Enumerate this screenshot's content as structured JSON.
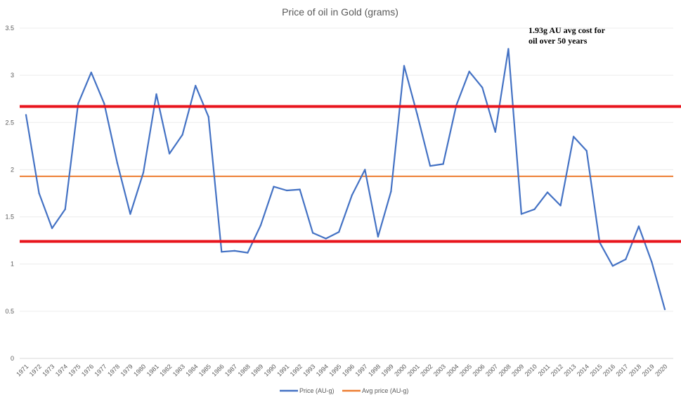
{
  "chart_data": {
    "type": "line",
    "title": "Price of oil in Gold (grams)",
    "xlabel": "",
    "ylabel": "",
    "ylim": [
      0,
      3.5
    ],
    "yticks": [
      "0",
      "0.5",
      "1",
      "1.5",
      "2",
      "2.5",
      "3",
      "3.5"
    ],
    "grid": true,
    "legend": "bottom",
    "annotation": [
      "1.93g AU avg cost for",
      "oil over 50 years"
    ],
    "categories": [
      "1971",
      "1972",
      "1973",
      "1974",
      "1975",
      "1976",
      "1977",
      "1978",
      "1979",
      "1980",
      "1981",
      "1982",
      "1983",
      "1984",
      "1985",
      "1986",
      "1987",
      "1988",
      "1989",
      "1990",
      "1991",
      "1992",
      "1993",
      "1994",
      "1995",
      "1996",
      "1997",
      "1998",
      "1999",
      "2000",
      "2001",
      "2002",
      "2003",
      "2004",
      "2005",
      "2006",
      "2007",
      "2008",
      "2009",
      "2010",
      "2011",
      "2012",
      "2013",
      "2014",
      "2015",
      "2016",
      "2017",
      "2018",
      "2019",
      "2020"
    ],
    "series": [
      {
        "name": "Price (AU-g)",
        "color": "#4472C4",
        "values": [
          2.58,
          1.75,
          1.38,
          1.58,
          2.7,
          3.03,
          2.7,
          2.07,
          1.53,
          1.97,
          2.8,
          2.17,
          2.37,
          2.89,
          2.56,
          1.13,
          1.14,
          1.12,
          1.41,
          1.82,
          1.78,
          1.79,
          1.33,
          1.27,
          1.34,
          1.73,
          2.0,
          1.29,
          1.77,
          3.1,
          2.59,
          2.04,
          2.06,
          2.68,
          3.04,
          2.87,
          2.4,
          3.28,
          1.53,
          1.58,
          1.76,
          1.62,
          2.35,
          2.2,
          1.23,
          0.98,
          1.05,
          1.4,
          1.02,
          0.52
        ]
      },
      {
        "name": "Avg price (AU-g)",
        "color": "#ED7D31",
        "constant": 1.93
      }
    ],
    "reference_lines": [
      {
        "value": 2.67,
        "color": "#E8141C"
      },
      {
        "value": 1.24,
        "color": "#E8141C"
      }
    ]
  }
}
